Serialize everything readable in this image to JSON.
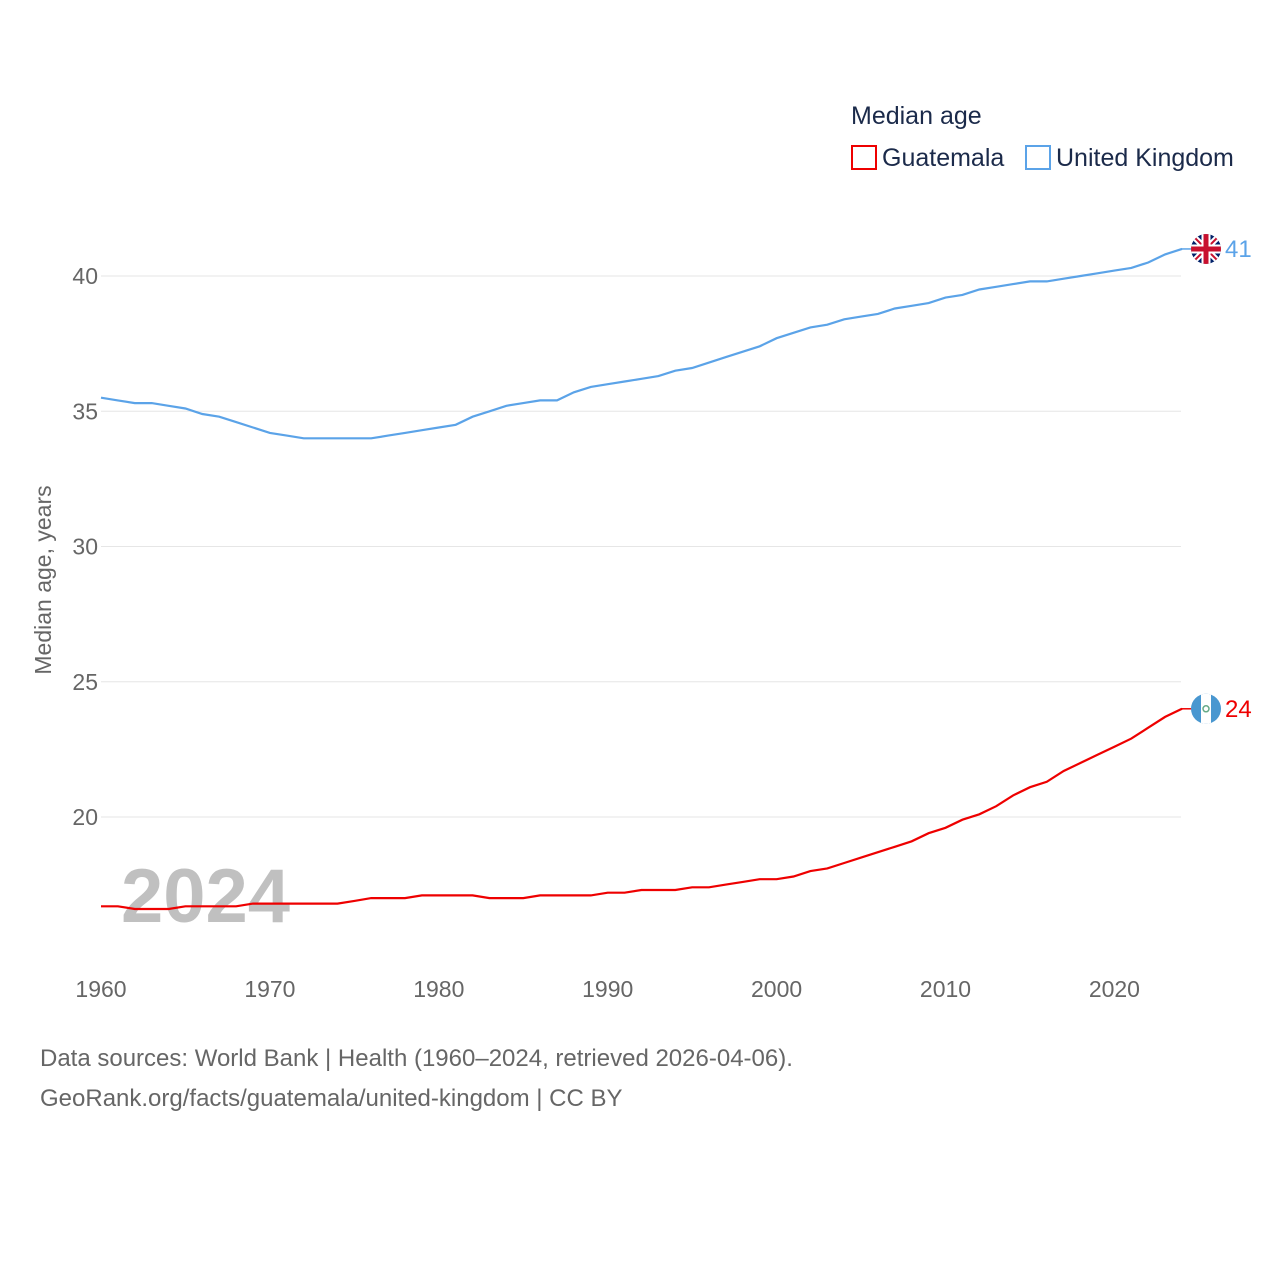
{
  "chart_data": {
    "type": "line",
    "title": "Median age",
    "ylabel": "Median age, years",
    "xlabel": "",
    "ylim": [
      15,
      42
    ],
    "xlim": [
      1960,
      2024
    ],
    "yticks": [
      20,
      25,
      30,
      35,
      40
    ],
    "xticks": [
      1960,
      1970,
      1980,
      1990,
      2000,
      2010,
      2020
    ],
    "grid": true,
    "legend_position": "top-right",
    "watermark_year": "2024",
    "x": [
      1960,
      1961,
      1962,
      1963,
      1964,
      1965,
      1966,
      1967,
      1968,
      1969,
      1970,
      1971,
      1972,
      1973,
      1974,
      1975,
      1976,
      1977,
      1978,
      1979,
      1980,
      1981,
      1982,
      1983,
      1984,
      1985,
      1986,
      1987,
      1988,
      1989,
      1990,
      1991,
      1992,
      1993,
      1994,
      1995,
      1996,
      1997,
      1998,
      1999,
      2000,
      2001,
      2002,
      2003,
      2004,
      2005,
      2006,
      2007,
      2008,
      2009,
      2010,
      2011,
      2012,
      2013,
      2014,
      2015,
      2016,
      2017,
      2018,
      2019,
      2020,
      2021,
      2022,
      2023,
      2024
    ],
    "series": [
      {
        "name": "Guatemala",
        "color": "#ee0000",
        "end_label": "24",
        "values": [
          16.7,
          16.7,
          16.6,
          16.6,
          16.6,
          16.7,
          16.7,
          16.7,
          16.7,
          16.8,
          16.8,
          16.8,
          16.8,
          16.8,
          16.8,
          16.9,
          17.0,
          17.0,
          17.0,
          17.1,
          17.1,
          17.1,
          17.1,
          17.0,
          17.0,
          17.0,
          17.1,
          17.1,
          17.1,
          17.1,
          17.2,
          17.2,
          17.3,
          17.3,
          17.3,
          17.4,
          17.4,
          17.5,
          17.6,
          17.7,
          17.7,
          17.8,
          18.0,
          18.1,
          18.3,
          18.5,
          18.7,
          18.9,
          19.1,
          19.4,
          19.6,
          19.9,
          20.1,
          20.4,
          20.8,
          21.1,
          21.3,
          21.7,
          22.0,
          22.3,
          22.6,
          22.9,
          23.3,
          23.7,
          24.0
        ]
      },
      {
        "name": "United Kingdom",
        "color": "#5ba3e8",
        "end_label": "41",
        "values": [
          35.5,
          35.4,
          35.3,
          35.3,
          35.2,
          35.1,
          34.9,
          34.8,
          34.6,
          34.4,
          34.2,
          34.1,
          34.0,
          34.0,
          34.0,
          34.0,
          34.0,
          34.1,
          34.2,
          34.3,
          34.4,
          34.5,
          34.8,
          35.0,
          35.2,
          35.3,
          35.4,
          35.4,
          35.7,
          35.9,
          36.0,
          36.1,
          36.2,
          36.3,
          36.5,
          36.6,
          36.8,
          37.0,
          37.2,
          37.4,
          37.7,
          37.9,
          38.1,
          38.2,
          38.4,
          38.5,
          38.6,
          38.8,
          38.9,
          39.0,
          39.2,
          39.3,
          39.5,
          39.6,
          39.7,
          39.8,
          39.8,
          39.9,
          40.0,
          40.1,
          40.2,
          40.3,
          40.5,
          40.8,
          41.0
        ]
      }
    ]
  },
  "footer": {
    "line1": "Data sources: World Bank | Health (1960–2024, retrieved 2026-04-06).",
    "line2": "GeoRank.org/facts/guatemala/united-kingdom | CC BY"
  }
}
